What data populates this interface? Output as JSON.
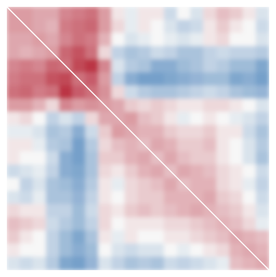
{
  "chart_data": {
    "type": "heatmap",
    "title": "",
    "xlabel": "",
    "ylabel": "",
    "colormap": "RdBu_r",
    "color_positive": "#b2182b",
    "color_neutral": "#f7f7f7",
    "color_negative": "#2166ac",
    "diagonal_color": "#ffffff",
    "value_range": [
      -1,
      1
    ],
    "axes_visible": false,
    "grid": false,
    "legend": "none",
    "symmetric": true,
    "size": 20,
    "blocks": [
      {
        "cells": [
          0,
          4
        ],
        "value": 0.35
      },
      {
        "cells": [
          4,
          8
        ],
        "value": 0.55
      },
      {
        "cells": [
          8,
          10
        ],
        "value": 0.3
      },
      {
        "cells": [
          10,
          14
        ],
        "value": 0.2
      },
      {
        "cells": [
          14,
          17
        ],
        "value": 0.25
      },
      {
        "cells": [
          17,
          20
        ],
        "value": 0.3
      }
    ],
    "matrix": [
      [
        0.35,
        0.35,
        0.3,
        0.3,
        0.45,
        0.5,
        0.55,
        0.35,
        0.05,
        -0.05,
        0.05,
        0.05,
        -0.15,
        0.0,
        -0.1,
        0.1,
        0.2,
        0.15,
        0.05,
        -0.1
      ],
      [
        0.35,
        0.35,
        0.3,
        0.25,
        0.5,
        0.55,
        0.6,
        0.35,
        0.1,
        -0.05,
        0.05,
        0.0,
        -0.1,
        -0.2,
        -0.15,
        0.05,
        0.15,
        0.05,
        0.0,
        -0.15
      ],
      [
        0.3,
        0.3,
        0.35,
        0.3,
        0.45,
        0.55,
        0.5,
        0.25,
        0.0,
        -0.1,
        -0.05,
        0.0,
        -0.05,
        -0.1,
        -0.05,
        0.05,
        0.1,
        0.0,
        0.0,
        -0.1
      ],
      [
        0.3,
        0.25,
        0.3,
        0.35,
        0.6,
        0.7,
        0.55,
        0.1,
        -0.2,
        -0.3,
        -0.25,
        -0.15,
        -0.2,
        -0.3,
        -0.3,
        -0.2,
        -0.15,
        -0.2,
        -0.2,
        -0.25
      ],
      [
        0.45,
        0.5,
        0.45,
        0.6,
        0.55,
        0.75,
        0.85,
        0.45,
        -0.1,
        -0.25,
        -0.3,
        -0.45,
        -0.45,
        -0.35,
        -0.3,
        -0.2,
        -0.25,
        -0.35,
        -0.35,
        -0.5
      ],
      [
        0.5,
        0.55,
        0.55,
        0.7,
        0.75,
        0.55,
        0.65,
        0.35,
        -0.2,
        -0.45,
        -0.55,
        -0.55,
        -0.5,
        -0.45,
        -0.4,
        -0.35,
        -0.35,
        -0.5,
        -0.45,
        -0.55
      ],
      [
        0.55,
        0.6,
        0.5,
        0.55,
        0.85,
        0.65,
        0.55,
        0.4,
        0.1,
        -0.15,
        -0.25,
        -0.3,
        -0.3,
        -0.25,
        -0.2,
        -0.15,
        -0.2,
        -0.3,
        -0.35,
        -0.4
      ],
      [
        0.35,
        0.35,
        0.25,
        0.1,
        0.45,
        0.35,
        0.4,
        0.35,
        0.3,
        0.15,
        0.1,
        0.15,
        0.1,
        0.05,
        0.05,
        0.1,
        0.1,
        0.05,
        0.0,
        -0.1
      ],
      [
        0.05,
        0.1,
        0.0,
        -0.2,
        -0.1,
        -0.2,
        0.1,
        0.3,
        0.3,
        0.35,
        0.2,
        0.15,
        0.05,
        -0.05,
        0.0,
        0.05,
        0.0,
        -0.05,
        -0.1,
        -0.2
      ],
      [
        -0.05,
        -0.05,
        -0.1,
        -0.3,
        -0.25,
        -0.45,
        -0.15,
        0.15,
        0.35,
        0.3,
        0.25,
        0.25,
        0.15,
        0.1,
        0.1,
        0.15,
        0.05,
        0.05,
        -0.15,
        -0.3
      ],
      [
        0.05,
        0.05,
        -0.05,
        -0.25,
        -0.3,
        -0.55,
        -0.25,
        0.1,
        0.2,
        0.25,
        0.2,
        0.3,
        0.25,
        0.15,
        0.15,
        0.2,
        0.05,
        0.0,
        -0.1,
        -0.25
      ],
      [
        0.05,
        0.0,
        0.0,
        -0.15,
        -0.45,
        -0.55,
        -0.3,
        0.15,
        0.15,
        0.25,
        0.3,
        0.2,
        0.3,
        0.2,
        0.15,
        0.15,
        0.05,
        0.0,
        -0.1,
        -0.3
      ],
      [
        -0.15,
        -0.1,
        -0.05,
        -0.2,
        -0.45,
        -0.5,
        -0.3,
        0.1,
        0.05,
        0.15,
        0.25,
        0.3,
        0.2,
        0.3,
        0.25,
        0.2,
        0.1,
        0.05,
        0.0,
        -0.15
      ],
      [
        0.0,
        -0.2,
        -0.1,
        -0.3,
        -0.35,
        -0.45,
        -0.25,
        0.05,
        -0.05,
        0.1,
        0.15,
        0.2,
        0.3,
        0.2,
        0.25,
        0.25,
        0.1,
        0.05,
        -0.05,
        -0.2
      ],
      [
        -0.1,
        -0.15,
        -0.05,
        -0.3,
        -0.3,
        -0.4,
        -0.2,
        0.05,
        0.0,
        0.1,
        0.15,
        0.15,
        0.25,
        0.25,
        0.25,
        0.3,
        0.15,
        0.1,
        0.0,
        -0.15
      ],
      [
        0.1,
        0.05,
        0.05,
        -0.2,
        -0.2,
        -0.35,
        -0.15,
        0.1,
        0.05,
        0.15,
        0.2,
        0.15,
        0.2,
        0.25,
        0.3,
        0.25,
        0.2,
        0.15,
        0.05,
        -0.1
      ],
      [
        0.2,
        0.15,
        0.1,
        -0.15,
        -0.25,
        -0.35,
        -0.2,
        0.1,
        0.0,
        0.05,
        0.05,
        0.05,
        0.1,
        0.1,
        0.15,
        0.2,
        0.25,
        0.2,
        0.1,
        -0.05
      ],
      [
        0.15,
        0.05,
        0.0,
        -0.2,
        -0.35,
        -0.5,
        -0.3,
        0.05,
        -0.05,
        0.05,
        0.0,
        0.0,
        0.05,
        0.05,
        0.1,
        0.15,
        0.2,
        0.3,
        0.25,
        0.2
      ],
      [
        0.05,
        0.0,
        0.0,
        -0.2,
        -0.35,
        -0.45,
        -0.35,
        0.0,
        -0.1,
        -0.15,
        -0.1,
        -0.1,
        0.0,
        -0.05,
        0.0,
        0.05,
        0.1,
        0.25,
        0.3,
        0.25
      ],
      [
        -0.1,
        -0.15,
        -0.1,
        -0.25,
        -0.5,
        -0.55,
        -0.4,
        -0.1,
        -0.2,
        -0.3,
        -0.25,
        -0.3,
        -0.15,
        -0.2,
        -0.15,
        -0.1,
        -0.05,
        0.2,
        0.25,
        0.3
      ]
    ]
  }
}
